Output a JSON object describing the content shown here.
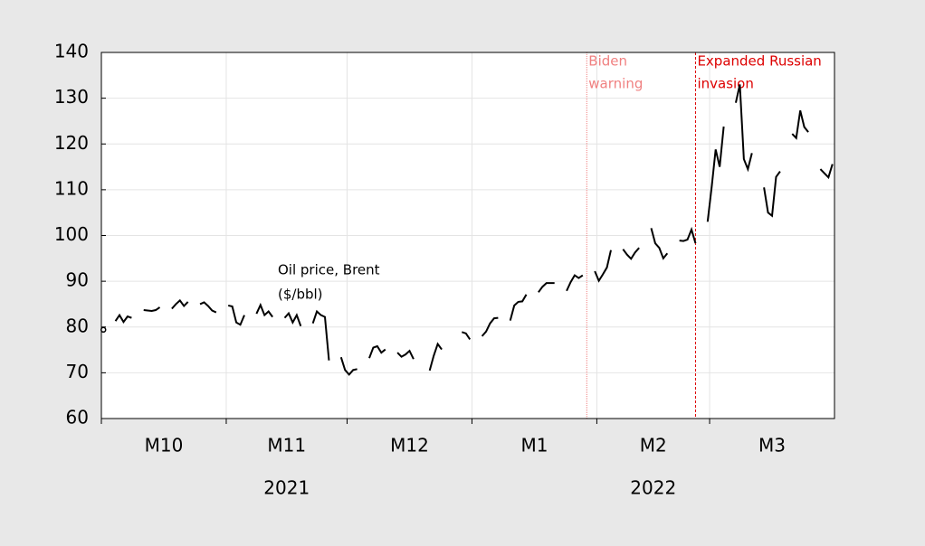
{
  "chart_data": {
    "type": "line",
    "annotation": [
      "Oil price, Brent",
      "($/bbl)"
    ],
    "color": "#000000",
    "ylim": [
      60,
      140
    ],
    "yticks": [
      60,
      70,
      80,
      90,
      100,
      110,
      120,
      130,
      140
    ],
    "grid": true,
    "years": [
      {
        "label": "2021",
        "months": [
          {
            "label": "M10",
            "values": [
              79.4,
              null,
              null,
              81.3,
              82.6,
              81.1,
              82.3,
              82.0,
              null,
              null,
              83.7,
              83.6,
              83.5,
              83.7,
              84.3,
              null,
              null,
              84.0,
              85.0,
              85.8,
              84.6,
              85.5,
              null,
              null,
              85.0,
              85.4,
              84.6,
              83.6,
              83.2,
              null,
              null
            ]
          },
          {
            "label": "M11",
            "values": [
              84.7,
              84.5,
              81.0,
              80.5,
              82.6,
              null,
              null,
              82.9,
              84.8,
              82.6,
              83.4,
              82.2,
              null,
              null,
              82.0,
              83.0,
              81.0,
              82.6,
              80.2,
              null,
              null,
              80.8,
              83.4,
              82.6,
              82.2,
              72.7,
              null,
              null,
              73.4,
              70.6
            ]
          },
          {
            "label": "M12",
            "values": [
              69.6,
              70.6,
              70.8,
              null,
              null,
              73.2,
              75.5,
              75.8,
              74.4,
              75.1,
              null,
              null,
              74.4,
              73.5,
              74.0,
              74.8,
              73.0,
              null,
              null,
              null,
              70.5,
              73.7,
              76.3,
              75.1,
              null,
              null,
              null,
              null,
              78.9,
              78.6,
              77.3
            ]
          }
        ]
      },
      {
        "label": "2022",
        "months": [
          {
            "label": "M1",
            "values": [
              null,
              null,
              78.0,
              79.0,
              80.8,
              81.9,
              82.0,
              null,
              null,
              81.4,
              84.7,
              85.5,
              85.6,
              87.1,
              null,
              null,
              87.6,
              88.8,
              89.6,
              89.6,
              89.6,
              null,
              null,
              87.9,
              89.8,
              91.3,
              90.7,
              91.3,
              null,
              null,
              92.2
            ],
            "events": [
              {
                "lines": [
                  "Biden",
                  "warning"
                ],
                "color": "#f08080",
                "day": 29
              }
            ]
          },
          {
            "label": "M2",
            "values": [
              90.1,
              91.5,
              93.0,
              96.8,
              null,
              null,
              97.0,
              95.8,
              94.9,
              96.3,
              97.3,
              null,
              null,
              101.6,
              98.3,
              97.3,
              95.0,
              96.1,
              null,
              null,
              98.9,
              98.8,
              99.1,
              101.3,
              98.3,
              null,
              null,
              103.0
            ],
            "events": [
              {
                "lines": [
                  "Expanded Russian",
                  "invasion"
                ],
                "color": "#dd0000",
                "day": 25
              }
            ]
          },
          {
            "label": "M3",
            "values": [
              110.5,
              118.8,
              115.0,
              123.8,
              null,
              null,
              129.0,
              133.0,
              116.7,
              114.5,
              118.0,
              null,
              null,
              110.5,
              105.0,
              104.3,
              112.8,
              114.0,
              null,
              null,
              122.2,
              121.3,
              127.3,
              123.7,
              122.6,
              null,
              null,
              114.5,
              113.6,
              112.7,
              115.6
            ]
          }
        ]
      }
    ]
  }
}
